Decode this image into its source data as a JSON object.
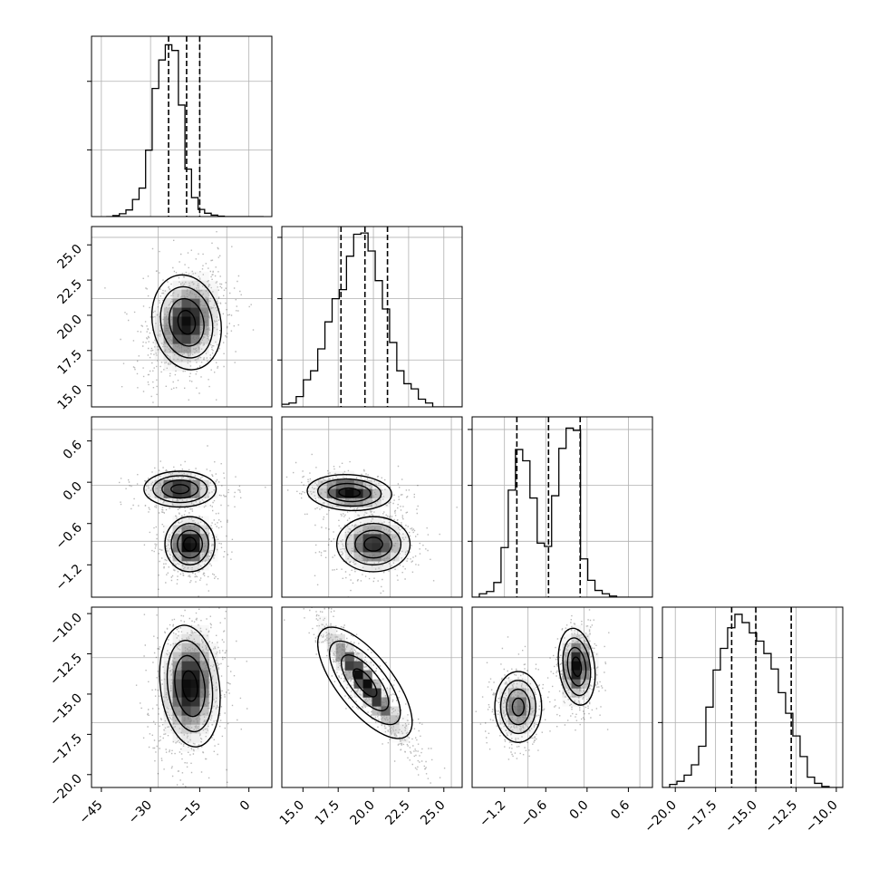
{
  "chart_data": {
    "type": "corner",
    "title": "",
    "parameters": [
      {
        "index": 0,
        "range": [
          -48,
          7
        ],
        "ticks": [
          "−45",
          "−30",
          "−15",
          "0"
        ],
        "tick_values": [
          -45,
          -30,
          -15,
          0
        ],
        "quantiles": [
          -24.5,
          -19.0,
          -15.0
        ],
        "hist_bins": {
          "start": -43.5,
          "width": 2.0,
          "counts": [
            0,
            2,
            6,
            14,
            36,
            60,
            140,
            270,
            330,
            362,
            350,
            235,
            100,
            40,
            15,
            7,
            3,
            1,
            0,
            0,
            0,
            0,
            0,
            0
          ]
        }
      },
      {
        "index": 1,
        "range": [
          13.5,
          26.3
        ],
        "ticks": [
          "15.0",
          "17.5",
          "20.0",
          "22.5",
          "25.0"
        ],
        "tick_values": [
          15.0,
          17.5,
          20.0,
          22.5,
          25.0
        ],
        "quantiles": [
          17.7,
          19.4,
          21.0
        ],
        "hist_bins": {
          "start": 13.5,
          "width": 0.51,
          "counts": [
            2,
            3,
            8,
            21,
            28,
            45,
            66,
            84,
            91,
            117,
            134,
            135,
            121,
            98,
            76,
            50,
            28,
            18,
            14,
            6,
            3,
            0,
            0,
            0,
            0
          ]
        }
      },
      {
        "index": 2,
        "range": [
          -1.67,
          0.95
        ],
        "ticks": [
          "−1.2",
          "−0.6",
          "0.0",
          "0.6"
        ],
        "tick_values": [
          -1.2,
          -0.6,
          0.0,
          0.6
        ],
        "quantiles": [
          -1.02,
          -0.56,
          -0.1
        ],
        "hist_bins": {
          "start": -1.67,
          "width": 0.105,
          "counts": [
            0,
            3,
            5,
            13,
            44,
            95,
            131,
            121,
            88,
            48,
            45,
            90,
            132,
            150,
            148,
            34,
            15,
            6,
            3,
            1,
            0,
            0,
            0,
            0,
            0
          ]
        }
      },
      {
        "index": 3,
        "range": [
          -20.8,
          -9.6
        ],
        "ticks": [
          "−20.0",
          "−17.5",
          "−15.0",
          "−12.5",
          "−10.0"
        ],
        "tick_values": [
          -20.0,
          -17.5,
          -15.0,
          -12.5,
          -10.0
        ],
        "quantiles": [
          -16.5,
          -15.0,
          -12.8
        ],
        "hist_bins": {
          "start": -20.8,
          "width": 0.45,
          "counts": [
            0,
            3,
            6,
            12,
            22,
            40,
            78,
            114,
            135,
            155,
            168,
            160,
            150,
            142,
            130,
            115,
            92,
            72,
            50,
            30,
            10,
            4,
            1,
            0,
            0
          ]
        }
      }
    ],
    "hist_ymax": [
      380,
      140,
      160,
      175
    ],
    "y_tick_fractions": [
      [
        0.37,
        0.75
      ],
      [
        0.26,
        0.6,
        0.94
      ],
      [
        0.31,
        0.62,
        0.93
      ],
      [
        0.36,
        0.72
      ]
    ],
    "x_tick_fractions": [
      [
        0.37,
        0.75
      ],
      [
        0.26,
        0.6,
        0.94
      ],
      [
        0.31,
        0.62,
        0.93
      ],
      [
        0.36,
        0.72
      ]
    ],
    "pairs": [
      {
        "row": 1,
        "col": 0,
        "blobs": [
          {
            "mx": -19,
            "my": 19.5,
            "sx": 5.2,
            "sy": 1.7,
            "rho": 0.25,
            "w": 1
          }
        ],
        "peaks": [
          {
            "x": -19,
            "y": 19.5
          }
        ]
      },
      {
        "row": 2,
        "col": 0,
        "blobs": [
          {
            "mx": -21,
            "my": -0.1,
            "sx": 5.5,
            "sy": 0.13,
            "rho": 0.0,
            "w": 0.45
          },
          {
            "mx": -18,
            "my": -0.9,
            "sx": 3.8,
            "sy": 0.2,
            "rho": 0.0,
            "w": 0.55
          }
        ],
        "peaks": [
          {
            "x": -18,
            "y": -0.9
          },
          {
            "x": -21,
            "y": -0.1
          }
        ]
      },
      {
        "row": 2,
        "col": 1,
        "blobs": [
          {
            "mx": 18.3,
            "my": -0.15,
            "sx": 1.5,
            "sy": 0.13,
            "rho": -0.2,
            "w": 0.45
          },
          {
            "mx": 20.0,
            "my": -0.9,
            "sx": 1.3,
            "sy": 0.2,
            "rho": 0.0,
            "w": 0.55
          }
        ],
        "peaks": [
          {
            "x": 18.3,
            "y": -0.15
          },
          {
            "x": 20.0,
            "y": -0.9
          }
        ]
      },
      {
        "row": 3,
        "col": 0,
        "blobs": [
          {
            "mx": -18,
            "my": -14.5,
            "sx": 4.5,
            "sy": 1.9,
            "rho": 0.1,
            "w": 1
          }
        ],
        "peaks": [
          {
            "x": -17,
            "y": -15.5
          }
        ]
      },
      {
        "row": 3,
        "col": 1,
        "blobs": [
          {
            "mx": 19.4,
            "my": -14.3,
            "sx": 1.6,
            "sy": 1.9,
            "rho": -0.93,
            "w": 1
          }
        ],
        "peaks": [
          {
            "x": 19.4,
            "y": -14.3
          },
          {
            "x": 18.4,
            "y": -13.2
          },
          {
            "x": 20.2,
            "y": -15.6
          }
        ]
      },
      {
        "row": 3,
        "col": 2,
        "blobs": [
          {
            "mx": -1.0,
            "my": -15.8,
            "sx": 0.17,
            "sy": 1.1,
            "rho": 0.0,
            "w": 0.45
          },
          {
            "mx": -0.15,
            "my": -13.3,
            "sx": 0.13,
            "sy": 1.2,
            "rho": 0.1,
            "w": 0.55
          }
        ],
        "peaks": [
          {
            "x": -1.0,
            "y": -15.8
          },
          {
            "x": -0.1,
            "y": -13.0
          }
        ]
      }
    ]
  }
}
